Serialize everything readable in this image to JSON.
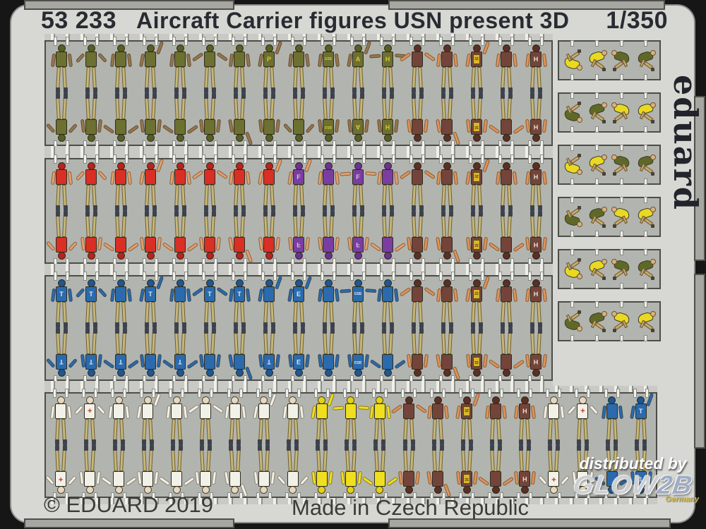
{
  "header": {
    "catalog_number": "53 233",
    "title": "Aircraft Carrier figures USN present 3D",
    "scale": "1/350"
  },
  "brand_vertical": "eduard",
  "footer": {
    "copyright": "© EDUARD 2019",
    "made_in": "Made in Czech Republic"
  },
  "watermark": {
    "line1": "distributed by",
    "logo_main": "GLOW",
    "logo_accent": "2B",
    "country": "Germany"
  },
  "palette": {
    "photo_bg": "#161616",
    "sheet_bg": "#d7d8d3",
    "panel_bg": "#b2b4af",
    "panel_border": "#4c4d49",
    "edge_tab": "#a6a7a2",
    "title_text": "#282b31",
    "footer_text": "#3b3c37",
    "trousers": "#c7b778",
    "trouser_outline": "#6b5f36",
    "boots": "#3d424d",
    "prong": "#f2f2ec",
    "vest": "#d9b62c",
    "vest_text": "#4a3c10",
    "shirts": {
      "olive": {
        "shirt": "#6c7030",
        "head": "#565e26",
        "arm": "#96764f",
        "letter": "#d9c531"
      },
      "brown": {
        "shirt": "#74443a",
        "head": "#5a3026",
        "arm": "#e09257",
        "letter": "#e8ddc8"
      },
      "red": {
        "shirt": "#d92f25",
        "head": "#b5251d",
        "arm": "#e5a06b",
        "letter": "#f0d040"
      },
      "purple": {
        "shirt": "#7a3da0",
        "head": "#693390",
        "arm": "#e5a06b",
        "letter": "#d5c2ea"
      },
      "blue": {
        "shirt": "#2a6aad",
        "head": "#1f578f",
        "arm": "#2a6aad",
        "letter": "#dce8f4"
      },
      "white": {
        "shirt": "#f2f1e8",
        "head": "#e6d7bf",
        "arm": "#f2f1e8",
        "letter": "#c4342c"
      },
      "yellow": {
        "shirt": "#f0df1f",
        "head": "#e3d318",
        "arm": "#f0df1f",
        "letter": "#8a7a10"
      }
    },
    "crouch": {
      "yellow": "#e9d922",
      "green": "#5e6927",
      "limb": "#c9a96a",
      "head": "#d8b37f"
    }
  },
  "bands": [
    {
      "name": "flight-deck-crew-green",
      "columns": [
        {
          "shirt": "olive",
          "pose": "down",
          "pose_b": "hips"
        },
        {
          "shirt": "olive",
          "pose": "hips",
          "pose_b": "down"
        },
        {
          "shirt": "olive",
          "pose": "down",
          "pose_b": "out"
        },
        {
          "shirt": "olive",
          "pose": "wave",
          "pose_b": "down"
        },
        {
          "shirt": "olive",
          "pose": "down",
          "pose_b": "out"
        },
        {
          "shirt": "olive",
          "pose": "out",
          "pose_b": "down"
        },
        {
          "shirt": "olive",
          "pose": "down",
          "pose_b": "wave"
        },
        {
          "shirt": "olive",
          "pose": "wave",
          "letter": "P",
          "pose_b": "down"
        },
        {
          "shirt": "olive",
          "pose": "down",
          "pose_b": "hips"
        },
        {
          "shirt": "olive",
          "pose": "down",
          "letter": "GSE",
          "pose_b": "down",
          "letter_b": "GSE"
        },
        {
          "shirt": "olive",
          "pose": "wave",
          "letter": "A",
          "pose_b": "down",
          "letter_b": "A"
        },
        {
          "shirt": "olive",
          "pose": "tpose",
          "letter": "H",
          "pose_b": "down",
          "letter_b": "H"
        },
        {
          "shirt": "brown",
          "pose": "out",
          "pose_b": "down"
        },
        {
          "shirt": "brown",
          "pose": "down",
          "pose_b": "wave"
        },
        {
          "shirt": "brown",
          "pose": "wave",
          "letter": "3Z",
          "vest": true,
          "pose_b": "down",
          "letter_b": "3Z",
          "vest_b": true
        },
        {
          "shirt": "brown",
          "pose": "down",
          "pose_b": "out"
        },
        {
          "shirt": "brown",
          "pose": "down",
          "letter": "H",
          "pose_b": "down",
          "letter_b": "H"
        }
      ]
    },
    {
      "name": "ordnance-red-fuel-purple",
      "columns": [
        {
          "shirt": "red",
          "pose": "down",
          "pose_b": "hips"
        },
        {
          "shirt": "red",
          "pose": "hips",
          "pose_b": "down"
        },
        {
          "shirt": "red",
          "pose": "down",
          "pose_b": "out"
        },
        {
          "shirt": "red",
          "pose": "wave",
          "pose_b": "down"
        },
        {
          "shirt": "red",
          "pose": "down",
          "pose_b": "out"
        },
        {
          "shirt": "red",
          "pose": "out",
          "pose_b": "down"
        },
        {
          "shirt": "red",
          "pose": "down",
          "pose_b": "wave"
        },
        {
          "shirt": "red",
          "pose": "wave",
          "pose_b": "down"
        },
        {
          "shirt": "purple",
          "pose": "wave",
          "letter": "F",
          "pose_b": "down",
          "letter_b": "F"
        },
        {
          "shirt": "purple",
          "pose": "down",
          "pose_b": "down"
        },
        {
          "shirt": "purple",
          "pose": "tpose",
          "letter": "F",
          "pose_b": "down",
          "letter_b": "F"
        },
        {
          "shirt": "purple",
          "pose": "down",
          "pose_b": "out"
        },
        {
          "shirt": "brown",
          "pose": "out",
          "pose_b": "down"
        },
        {
          "shirt": "brown",
          "pose": "down",
          "pose_b": "wave"
        },
        {
          "shirt": "brown",
          "pose": "wave",
          "letter": "3Z",
          "vest": true,
          "pose_b": "down",
          "letter_b": "3Z",
          "vest_b": true
        },
        {
          "shirt": "brown",
          "pose": "down",
          "pose_b": "out"
        },
        {
          "shirt": "brown",
          "pose": "down",
          "letter": "H",
          "pose_b": "down",
          "letter_b": "H"
        }
      ]
    },
    {
      "name": "handling-blue",
      "columns": [
        {
          "shirt": "blue",
          "pose": "down",
          "letter": "T",
          "pose_b": "hips",
          "letter_b": "T"
        },
        {
          "shirt": "blue",
          "pose": "hips",
          "letter": "T",
          "pose_b": "down",
          "letter_b": "T"
        },
        {
          "shirt": "blue",
          "pose": "down",
          "pose_b": "out",
          "letter_b": "T"
        },
        {
          "shirt": "blue",
          "pose": "wave",
          "letter": "T",
          "pose_b": "down"
        },
        {
          "shirt": "blue",
          "pose": "down",
          "pose_b": "out",
          "letter_b": "T"
        },
        {
          "shirt": "blue",
          "pose": "out",
          "letter": "T",
          "pose_b": "down"
        },
        {
          "shirt": "blue",
          "pose": "down",
          "letter": "T",
          "pose_b": "wave"
        },
        {
          "shirt": "blue",
          "pose": "wave",
          "pose_b": "down",
          "letter_b": "T"
        },
        {
          "shirt": "blue",
          "pose": "wave",
          "letter": "E",
          "pose_b": "down",
          "letter_b": "E"
        },
        {
          "shirt": "blue",
          "pose": "down",
          "pose_b": "down"
        },
        {
          "shirt": "blue",
          "pose": "tpose",
          "letter": "GSE",
          "pose_b": "down",
          "letter_b": "GSE"
        },
        {
          "shirt": "blue",
          "pose": "down",
          "pose_b": "out"
        },
        {
          "shirt": "brown",
          "pose": "out",
          "pose_b": "down"
        },
        {
          "shirt": "brown",
          "pose": "down",
          "pose_b": "wave"
        },
        {
          "shirt": "brown",
          "pose": "wave",
          "letter": "22",
          "vest": true,
          "pose_b": "down",
          "letter_b": "22",
          "vest_b": true
        },
        {
          "shirt": "brown",
          "pose": "down",
          "pose_b": "out"
        },
        {
          "shirt": "brown",
          "pose": "down",
          "letter": "H",
          "pose_b": "down",
          "letter_b": "H"
        }
      ]
    },
    {
      "name": "medics-white-yellow-mixed",
      "columns": [
        {
          "shirt": "white",
          "pose": "down",
          "pose_b": "hips",
          "letter_b": "+"
        },
        {
          "shirt": "white",
          "pose": "hips",
          "letter": "+",
          "pose_b": "down"
        },
        {
          "shirt": "white",
          "pose": "down",
          "pose_b": "out"
        },
        {
          "shirt": "white",
          "pose": "wave",
          "pose_b": "down"
        },
        {
          "shirt": "white",
          "pose": "down",
          "pose_b": "out"
        },
        {
          "shirt": "white",
          "pose": "out",
          "pose_b": "down"
        },
        {
          "shirt": "white",
          "pose": "down",
          "pose_b": "wave"
        },
        {
          "shirt": "white",
          "pose": "wave",
          "pose_b": "down"
        },
        {
          "shirt": "white",
          "pose": "down",
          "pose_b": "hips"
        },
        {
          "shirt": "yellow",
          "pose": "wave",
          "pose_b": "down"
        },
        {
          "shirt": "yellow",
          "pose": "tpose",
          "pose_b": "down"
        },
        {
          "shirt": "yellow",
          "pose": "down",
          "pose_b": "out"
        },
        {
          "shirt": "brown",
          "pose": "out",
          "pose_b": "down"
        },
        {
          "shirt": "brown",
          "pose": "down",
          "pose_b": "wave"
        },
        {
          "shirt": "brown",
          "pose": "wave",
          "letter": "3Z",
          "vest": true,
          "pose_b": "down",
          "letter_b": "3Z",
          "vest_b": true
        },
        {
          "shirt": "brown",
          "pose": "down",
          "pose_b": "out"
        },
        {
          "shirt": "brown",
          "pose": "down",
          "letter": "H",
          "pose_b": "down",
          "letter_b": "H"
        },
        {
          "shirt": "white",
          "pose": "down",
          "pose_b": "hips",
          "letter_b": "+"
        },
        {
          "shirt": "white",
          "pose": "hips",
          "letter": "+",
          "pose_b": "down"
        },
        {
          "shirt": "blue",
          "pose": "down",
          "pose_b": "out"
        },
        {
          "shirt": "blue",
          "pose": "wave",
          "letter": "T",
          "pose_b": "down",
          "letter_b": "T"
        }
      ]
    }
  ],
  "side_panels": [
    {
      "figures": [
        {
          "jersey": "yellow",
          "flip": "y"
        },
        {
          "jersey": "yellow",
          "flip": ""
        },
        {
          "jersey": "green",
          "flip": "x"
        },
        {
          "jersey": "green",
          "flip": ""
        }
      ]
    },
    {
      "figures": [
        {
          "jersey": "green",
          "flip": "y"
        },
        {
          "jersey": "green",
          "flip": ""
        },
        {
          "jersey": "yellow",
          "flip": "x"
        },
        {
          "jersey": "yellow",
          "flip": ""
        }
      ]
    },
    {
      "figures": [
        {
          "jersey": "yellow",
          "flip": "y"
        },
        {
          "jersey": "yellow",
          "flip": ""
        },
        {
          "jersey": "green",
          "flip": "x"
        },
        {
          "jersey": "green",
          "flip": ""
        }
      ]
    },
    {
      "figures": [
        {
          "jersey": "green",
          "flip": "y"
        },
        {
          "jersey": "green",
          "flip": ""
        },
        {
          "jersey": "yellow",
          "flip": "x"
        },
        {
          "jersey": "yellow",
          "flip": ""
        }
      ]
    },
    {
      "figures": [
        {
          "jersey": "yellow",
          "flip": "y"
        },
        {
          "jersey": "yellow",
          "flip": ""
        },
        {
          "jersey": "green",
          "flip": "x"
        },
        {
          "jersey": "green",
          "flip": ""
        }
      ]
    },
    {
      "figures": [
        {
          "jersey": "green",
          "flip": "y"
        },
        {
          "jersey": "green",
          "flip": ""
        },
        {
          "jersey": "yellow",
          "flip": "x"
        },
        {
          "jersey": "yellow",
          "flip": ""
        }
      ]
    }
  ]
}
